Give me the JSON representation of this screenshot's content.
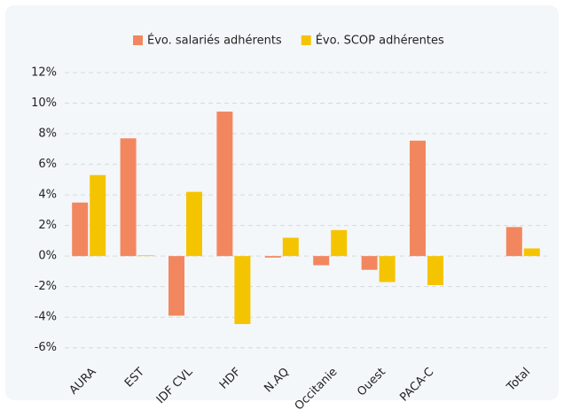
{
  "chart_data": {
    "type": "bar",
    "categories": [
      "AURA",
      "EST",
      "IDF CVL",
      "HDF",
      "N.AQ",
      "Occitanie",
      "Ouest",
      "PACA-C",
      null,
      "Total"
    ],
    "series": [
      {
        "name": "Évo. salariés adhérents",
        "color": "#f2875f",
        "values": [
          3.5,
          7.7,
          -3.9,
          9.45,
          -0.1,
          -0.6,
          -0.9,
          7.55,
          null,
          1.9
        ]
      },
      {
        "name": "Évo. SCOP adhérentes",
        "color": "#f5c400",
        "values": [
          5.3,
          0.05,
          4.2,
          -4.45,
          1.2,
          1.7,
          -1.7,
          -1.9,
          null,
          0.5
        ]
      }
    ],
    "ylim": [
      -7,
      12
    ],
    "yticks": [
      {
        "value": -6,
        "label": "-6%"
      },
      {
        "value": -4,
        "label": "-4%"
      },
      {
        "value": -2,
        "label": "-2%"
      },
      {
        "value": 0,
        "label": "0%"
      },
      {
        "value": 2,
        "label": "2%"
      },
      {
        "value": 4,
        "label": "4%"
      },
      {
        "value": 6,
        "label": "6%"
      },
      {
        "value": 8,
        "label": "8%"
      },
      {
        "value": 10,
        "label": "10%"
      },
      {
        "value": 12,
        "label": "12%"
      }
    ],
    "grid": true,
    "legend": "top"
  }
}
